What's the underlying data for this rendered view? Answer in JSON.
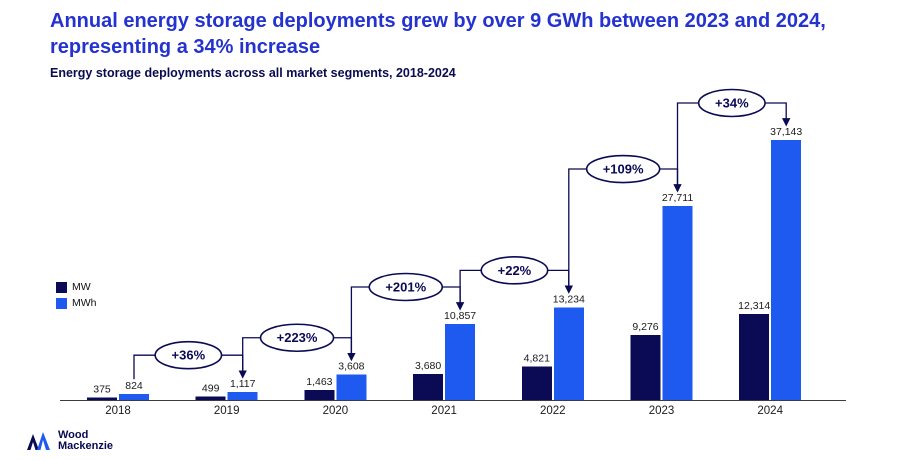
{
  "header": {
    "title_line1": "Annual energy storage deployments grew by over 9 GWh between 2023 and 2024,",
    "title_line2": "representing a 34% increase",
    "subtitle": "Energy storage deployments across all market segments, 2018-2024"
  },
  "colors": {
    "title_blue": "#2433cf",
    "navy": "#0a0a55",
    "mw": "#0b0b55",
    "mwh": "#1f5af0",
    "label": "#1a1a1a"
  },
  "legend": [
    {
      "label": "MW"
    },
    {
      "label": "MWh"
    }
  ],
  "chart_data": {
    "type": "bar",
    "title": "Annual energy storage deployments grew by over 9 GWh between 2023 and 2024, representing a 34% increase",
    "subtitle": "Energy storage deployments across all market segments, 2018-2024",
    "categories": [
      "2018",
      "2019",
      "2020",
      "2021",
      "2022",
      "2023",
      "2024"
    ],
    "series": [
      {
        "name": "MW",
        "values": [
          375,
          499,
          1463,
          3680,
          4821,
          9276,
          12314
        ]
      },
      {
        "name": "MWh",
        "values": [
          824,
          1117,
          3608,
          10857,
          13234,
          27711,
          37143
        ]
      }
    ],
    "annotations": [
      {
        "label": "+36%",
        "from": 0,
        "to": 1
      },
      {
        "label": "+223%",
        "from": 1,
        "to": 2
      },
      {
        "label": "+201%",
        "from": 2,
        "to": 3
      },
      {
        "label": "+22%",
        "from": 3,
        "to": 4
      },
      {
        "label": "+109%",
        "from": 4,
        "to": 5
      },
      {
        "label": "+34%",
        "from": 5,
        "to": 6
      }
    ],
    "ylim": [
      0,
      37143
    ],
    "xlabel": "",
    "ylabel": "",
    "grid": false,
    "legend_position": "left"
  },
  "footer": {
    "brand_line1": "Wood",
    "brand_line2": "Mackenzie"
  }
}
